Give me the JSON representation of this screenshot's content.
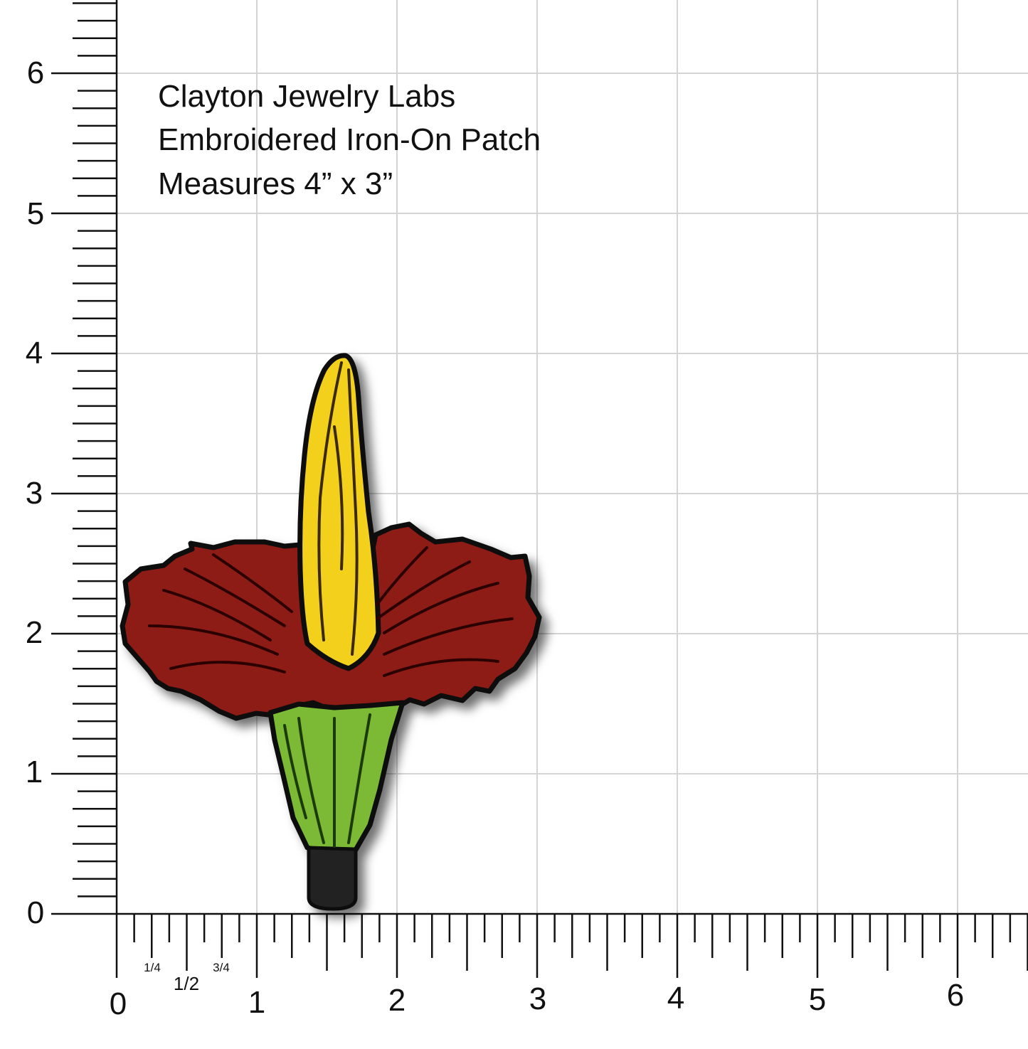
{
  "caption": {
    "line1": "Clayton Jewelry Labs",
    "line2": "Embroidered Iron-On Patch",
    "line3": "Measures 4” x 3”"
  },
  "ruler": {
    "x_labels": [
      "0",
      "1",
      "2",
      "3",
      "4",
      "5",
      "6"
    ],
    "y_labels": [
      "0",
      "1",
      "2",
      "3",
      "4",
      "5",
      "6"
    ],
    "fraction_labels": [
      "1/4",
      "1/2",
      "3/4"
    ]
  },
  "patch": {
    "subject": "corpse flower",
    "colors": {
      "spadix": "#f2d01c",
      "spathe": "#8e1a12",
      "stem": "#7cba34",
      "base": "#222222",
      "outline": "#0a0a0a"
    }
  }
}
